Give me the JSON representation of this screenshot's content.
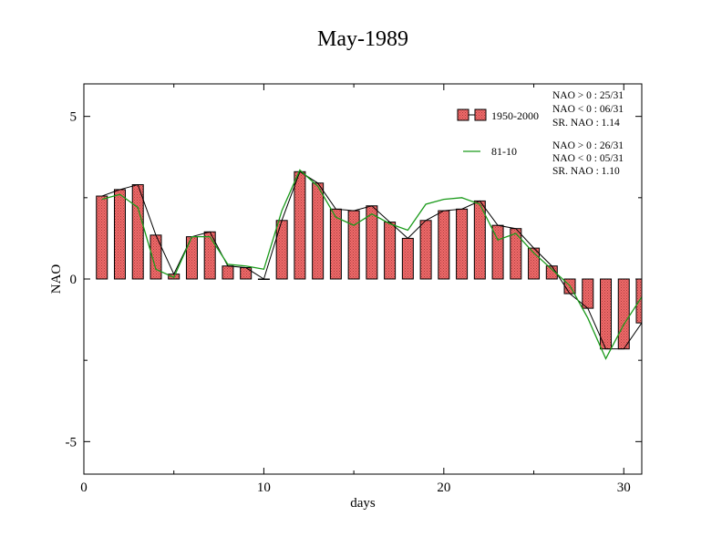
{
  "chart_data": {
    "type": "bar",
    "title": "May-1989",
    "xlabel": "days",
    "ylabel": "NAO",
    "xlim": [
      0,
      31
    ],
    "ylim": [
      -6,
      6
    ],
    "xticks": [
      0,
      10,
      20,
      30
    ],
    "yticks": [
      -5,
      0,
      5
    ],
    "x": [
      1,
      2,
      3,
      4,
      5,
      6,
      7,
      8,
      9,
      10,
      11,
      12,
      13,
      14,
      15,
      16,
      17,
      18,
      19,
      20,
      21,
      22,
      23,
      24,
      25,
      26,
      27,
      28,
      29,
      30,
      31
    ],
    "series": [
      {
        "name": "1950-2000",
        "kind": "bar",
        "fill": "#f06a6a",
        "values": [
          2.55,
          2.75,
          2.9,
          1.35,
          0.15,
          1.3,
          1.45,
          0.4,
          0.35,
          0.0,
          1.8,
          3.3,
          2.95,
          2.15,
          2.1,
          2.25,
          1.75,
          1.25,
          1.8,
          2.1,
          2.15,
          2.4,
          1.65,
          1.55,
          0.95,
          0.4,
          -0.45,
          -0.9,
          -2.15,
          -2.15,
          -1.35
        ]
      },
      {
        "name": "81-10",
        "kind": "line",
        "color": "#1a9a1a",
        "values": [
          2.45,
          2.6,
          2.2,
          0.3,
          0.05,
          1.3,
          1.3,
          0.45,
          0.4,
          0.3,
          2.1,
          3.35,
          2.85,
          1.9,
          1.65,
          2.0,
          1.7,
          1.5,
          2.3,
          2.45,
          2.5,
          2.3,
          1.2,
          1.4,
          0.8,
          0.3,
          -0.2,
          -1.2,
          -2.45,
          -1.4,
          -0.55
        ]
      }
    ],
    "legend": {
      "placement": "top-right",
      "entries": [
        {
          "label": "1950-2000",
          "stats": [
            "NAO > 0 : 25/31",
            "NAO < 0 : 06/31",
            "SR. NAO :  1.14"
          ]
        },
        {
          "label": "81-10",
          "stats": [
            "NAO > 0 : 26/31",
            "NAO < 0 : 05/31",
            "SR. NAO :  1.10"
          ]
        }
      ]
    },
    "grid": false
  }
}
